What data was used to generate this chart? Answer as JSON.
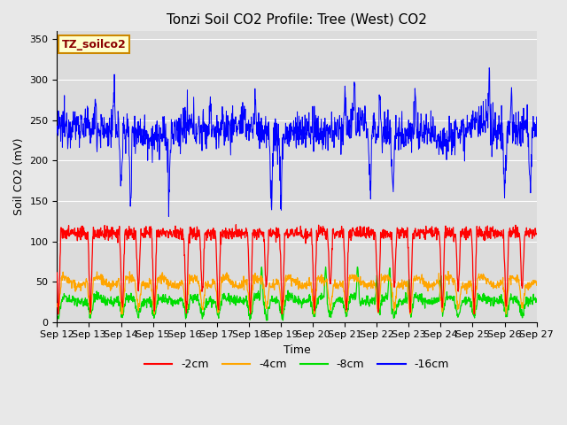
{
  "title": "Tonzi Soil CO2 Profile: Tree (West) CO2",
  "ylabel": "Soil CO2 (mV)",
  "xlabel": "Time",
  "label_box": "TZ_soilco2",
  "ylim": [
    0,
    360
  ],
  "yticks": [
    0,
    50,
    100,
    150,
    200,
    250,
    300,
    350
  ],
  "xtick_labels": [
    "Sep 12",
    "Sep 13",
    "Sep 14",
    "Sep 15",
    "Sep 16",
    "Sep 17",
    "Sep 18",
    "Sep 19",
    "Sep 20",
    "Sep 21",
    "Sep 22",
    "Sep 23",
    "Sep 24",
    "Sep 25",
    "Sep 26",
    "Sep 27"
  ],
  "colors": {
    "m2cm": "#ff0000",
    "m4cm": "#ffa500",
    "m8cm": "#00dd00",
    "m16cm": "#0000ff"
  },
  "legend_labels": [
    "-2cm",
    "-4cm",
    "-8cm",
    "-16cm"
  ],
  "plot_bg": "#dcdcdc",
  "title_fontsize": 11,
  "axis_fontsize": 9,
  "tick_fontsize": 8
}
